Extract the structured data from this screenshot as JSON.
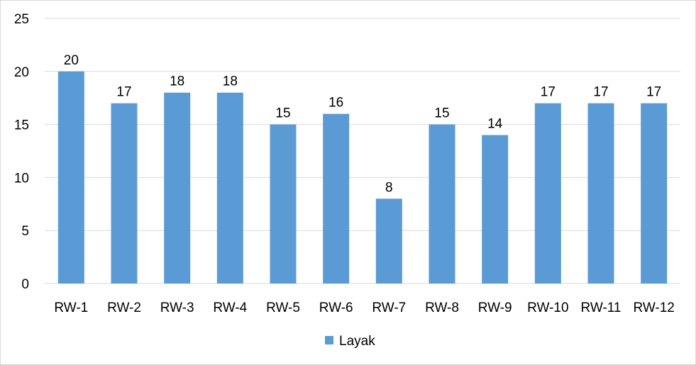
{
  "chart_data": {
    "type": "bar",
    "categories": [
      "RW-1",
      "RW-2",
      "RW-3",
      "RW-4",
      "RW-5",
      "RW-6",
      "RW-7",
      "RW-8",
      "RW-9",
      "RW-10",
      "RW-11",
      "RW-12"
    ],
    "series": [
      {
        "name": "Layak",
        "values": [
          20,
          17,
          18,
          18,
          15,
          16,
          8,
          15,
          14,
          17,
          17,
          17
        ],
        "color": "#5b9bd5"
      }
    ],
    "yticks": [
      "0",
      "5",
      "10",
      "15",
      "20",
      "25"
    ],
    "ylim": [
      0,
      25
    ],
    "grid": true,
    "gridColor": "#d9d9d9",
    "data_labels": true,
    "legend_position": "bottom"
  }
}
